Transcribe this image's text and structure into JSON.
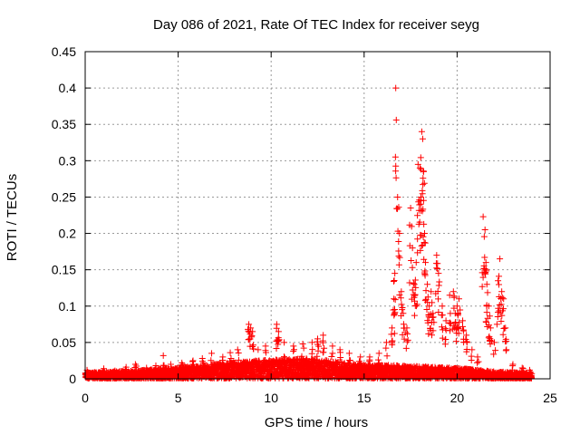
{
  "chart_data": {
    "type": "scatter",
    "title": "Day 086 of 2021, Rate Of TEC Index for receiver seyg",
    "xlabel": "GPS time / hours",
    "ylabel": "ROTI / TECUs",
    "xlim": [
      0,
      25
    ],
    "ylim": [
      0,
      0.45
    ],
    "xticks": [
      0,
      5,
      10,
      15,
      20,
      25
    ],
    "yticks": [
      0,
      0.05,
      0.1,
      0.15,
      0.2,
      0.25,
      0.3,
      0.35,
      0.4,
      0.45
    ],
    "xtick_labels": [
      "0",
      "5",
      "10",
      "15",
      "20",
      "25"
    ],
    "ytick_labels": [
      "0",
      "0.05",
      "0.1",
      "0.15",
      "0.2",
      "0.25",
      "0.3",
      "0.35",
      "0.4",
      "0.45"
    ],
    "grid": true,
    "marker": "+",
    "series": [
      {
        "name": "ROTI",
        "color": "#ff0000",
        "background_time_range": [
          0,
          24
        ],
        "background_level_profile": [
          [
            0,
            0.008
          ],
          [
            3,
            0.012
          ],
          [
            6,
            0.018
          ],
          [
            9,
            0.025
          ],
          [
            12,
            0.028
          ],
          [
            15,
            0.02
          ],
          [
            17,
            0.018
          ],
          [
            20,
            0.015
          ],
          [
            22,
            0.01
          ],
          [
            24,
            0.008
          ]
        ],
        "points": [
          [
            0.1,
            0.012
          ],
          [
            0.5,
            0.009
          ],
          [
            1.0,
            0.014
          ],
          [
            1.6,
            0.011
          ],
          [
            2.2,
            0.016
          ],
          [
            2.7,
            0.02
          ],
          [
            3.3,
            0.015
          ],
          [
            3.8,
            0.018
          ],
          [
            4.2,
            0.032
          ],
          [
            4.6,
            0.02
          ],
          [
            5.2,
            0.022
          ],
          [
            5.8,
            0.025
          ],
          [
            6.3,
            0.028
          ],
          [
            6.8,
            0.035
          ],
          [
            7.4,
            0.03
          ],
          [
            7.8,
            0.036
          ],
          [
            8.2,
            0.04
          ],
          [
            8.8,
            0.075
          ],
          [
            8.9,
            0.07
          ],
          [
            9.0,
            0.065
          ],
          [
            9.3,
            0.04
          ],
          [
            9.7,
            0.045
          ],
          [
            10.3,
            0.075
          ],
          [
            10.4,
            0.065
          ],
          [
            10.7,
            0.05
          ],
          [
            11.2,
            0.045
          ],
          [
            11.7,
            0.048
          ],
          [
            12.2,
            0.05
          ],
          [
            12.5,
            0.055
          ],
          [
            12.8,
            0.06
          ],
          [
            13.3,
            0.045
          ],
          [
            13.7,
            0.04
          ],
          [
            14.2,
            0.035
          ],
          [
            14.8,
            0.03
          ],
          [
            15.3,
            0.03
          ],
          [
            15.8,
            0.035
          ],
          [
            16.2,
            0.05
          ],
          [
            16.5,
            0.07
          ],
          [
            16.6,
            0.11
          ],
          [
            16.65,
            0.145
          ],
          [
            16.7,
            0.4
          ],
          [
            16.8,
            0.25
          ],
          [
            16.9,
            0.2
          ],
          [
            17.0,
            0.12
          ],
          [
            17.1,
            0.09
          ],
          [
            17.3,
            0.07
          ],
          [
            17.5,
            0.235
          ],
          [
            17.6,
            0.18
          ],
          [
            17.7,
            0.13
          ],
          [
            17.8,
            0.16
          ],
          [
            17.9,
            0.295
          ],
          [
            18.0,
            0.29
          ],
          [
            18.05,
            0.245
          ],
          [
            18.1,
            0.34
          ],
          [
            18.15,
            0.33
          ],
          [
            18.2,
            0.285
          ],
          [
            18.25,
            0.2
          ],
          [
            18.3,
            0.16
          ],
          [
            18.4,
            0.13
          ],
          [
            18.5,
            0.1
          ],
          [
            18.6,
            0.12
          ],
          [
            18.7,
            0.09
          ],
          [
            18.9,
            0.17
          ],
          [
            19.0,
            0.145
          ],
          [
            19.2,
            0.1
          ],
          [
            19.4,
            0.08
          ],
          [
            19.6,
            0.115
          ],
          [
            19.8,
            0.12
          ],
          [
            19.9,
            0.09
          ],
          [
            20.0,
            0.1
          ],
          [
            20.1,
            0.11
          ],
          [
            20.3,
            0.08
          ],
          [
            20.5,
            0.06
          ],
          [
            20.8,
            0.04
          ],
          [
            21.1,
            0.03
          ],
          [
            21.4,
            0.223
          ],
          [
            21.5,
            0.205
          ],
          [
            21.55,
            0.16
          ],
          [
            21.6,
            0.13
          ],
          [
            21.7,
            0.1
          ],
          [
            21.8,
            0.07
          ],
          [
            22.0,
            0.05
          ],
          [
            22.2,
            0.135
          ],
          [
            22.3,
            0.165
          ],
          [
            22.4,
            0.12
          ],
          [
            22.5,
            0.11
          ],
          [
            22.6,
            0.07
          ],
          [
            23.0,
            0.02
          ],
          [
            23.5,
            0.015
          ],
          [
            23.9,
            0.012
          ]
        ]
      }
    ]
  }
}
